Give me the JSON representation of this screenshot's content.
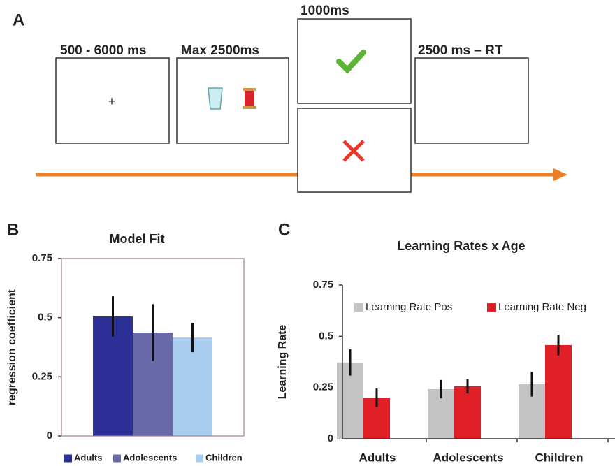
{
  "panel_a": {
    "label": "A",
    "box_labels": [
      "500 - 6000 ms",
      "Max 2500ms",
      "1000ms",
      "2500 ms – RT"
    ]
  },
  "chart_data": [
    {
      "type": "bar",
      "panel_label": "B",
      "title": "Model Fit",
      "y_label": "regression coefficient",
      "series": [
        {
          "name": "Adults",
          "color": "#2b2f96",
          "values": [
            0.505
          ],
          "errors": [
            0.085
          ]
        },
        {
          "name": "Adolescents",
          "color": "#6a6aa8",
          "values": [
            0.437
          ],
          "errors": [
            0.12
          ]
        },
        {
          "name": "Children",
          "color": "#a8cdef",
          "values": [
            0.416
          ],
          "errors": [
            0.062
          ]
        }
      ],
      "ylim": [
        0,
        0.75
      ],
      "yticks": [
        0,
        0.25,
        0.5,
        0.75
      ],
      "legend": "bottom"
    },
    {
      "type": "bar",
      "panel_label": "C",
      "title": "Learning Rates x Age",
      "y_label": "Learning Rate",
      "categories": [
        "Adults",
        "Adolescents",
        "Children"
      ],
      "series": [
        {
          "name": "Learning Rate Pos",
          "color": "#c4c4c4",
          "values": [
            0.372,
            0.242,
            0.266
          ],
          "errors": [
            0.064,
            0.045,
            0.06
          ]
        },
        {
          "name": "Learning Rate Neg",
          "color": "#e11f26",
          "values": [
            0.2,
            0.256,
            0.457
          ],
          "errors": [
            0.045,
            0.035,
            0.05
          ]
        }
      ],
      "ylim": [
        0,
        0.75
      ],
      "yticks": [
        0,
        0.25,
        0.5,
        0.75
      ],
      "legend": "top"
    }
  ]
}
